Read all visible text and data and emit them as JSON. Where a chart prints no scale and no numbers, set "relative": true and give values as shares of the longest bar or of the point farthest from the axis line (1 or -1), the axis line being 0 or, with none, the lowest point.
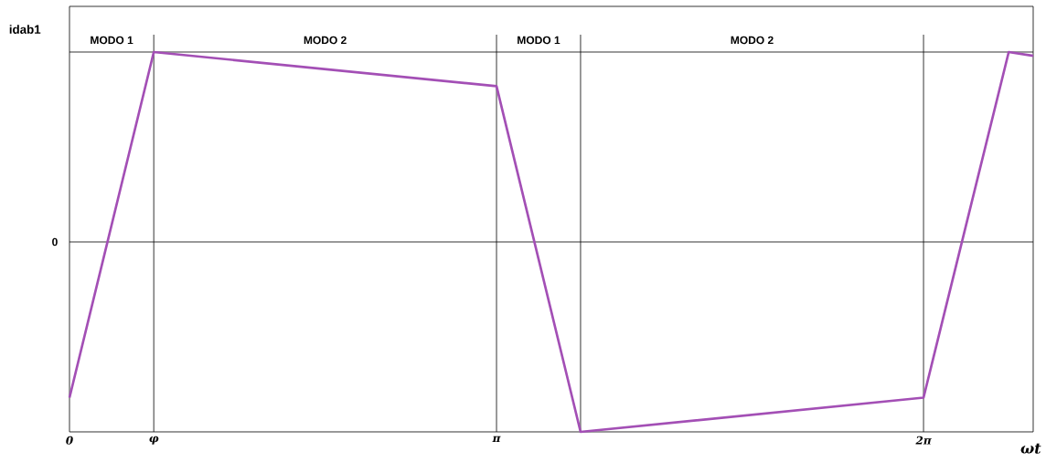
{
  "chart_data": {
    "type": "line",
    "relative": true,
    "xlabel": "ωt",
    "ylabel": "idab1",
    "x": [
      0,
      0.62,
      3.1416,
      3.76,
      6.2832,
      6.91,
      7.09
    ],
    "series": [
      {
        "color": "#a34fb5",
        "values": [
          -0.82,
          1,
          0.82,
          -1,
          -0.82,
          1,
          0.98
        ]
      }
    ],
    "xlim": [
      0,
      7.09
    ],
    "xticks": [
      0,
      {
        "value": 0.62,
        "label": "φ"
      },
      {
        "value": 3.1416,
        "label": "π"
      },
      {
        "value": 6.2832,
        "label": "2π"
      }
    ],
    "ref_lines": [
      {
        "axis": "y",
        "value": 0,
        "label": "0"
      },
      {
        "axis": "x",
        "value": 0.62
      },
      {
        "axis": "x",
        "value": 3.1416
      },
      {
        "axis": "x",
        "value": 3.76
      },
      {
        "axis": "x",
        "value": 6.2832
      }
    ],
    "annotations": [
      "MODO 1",
      "MODO 2",
      "MODO 1",
      "MODO 2"
    ]
  }
}
